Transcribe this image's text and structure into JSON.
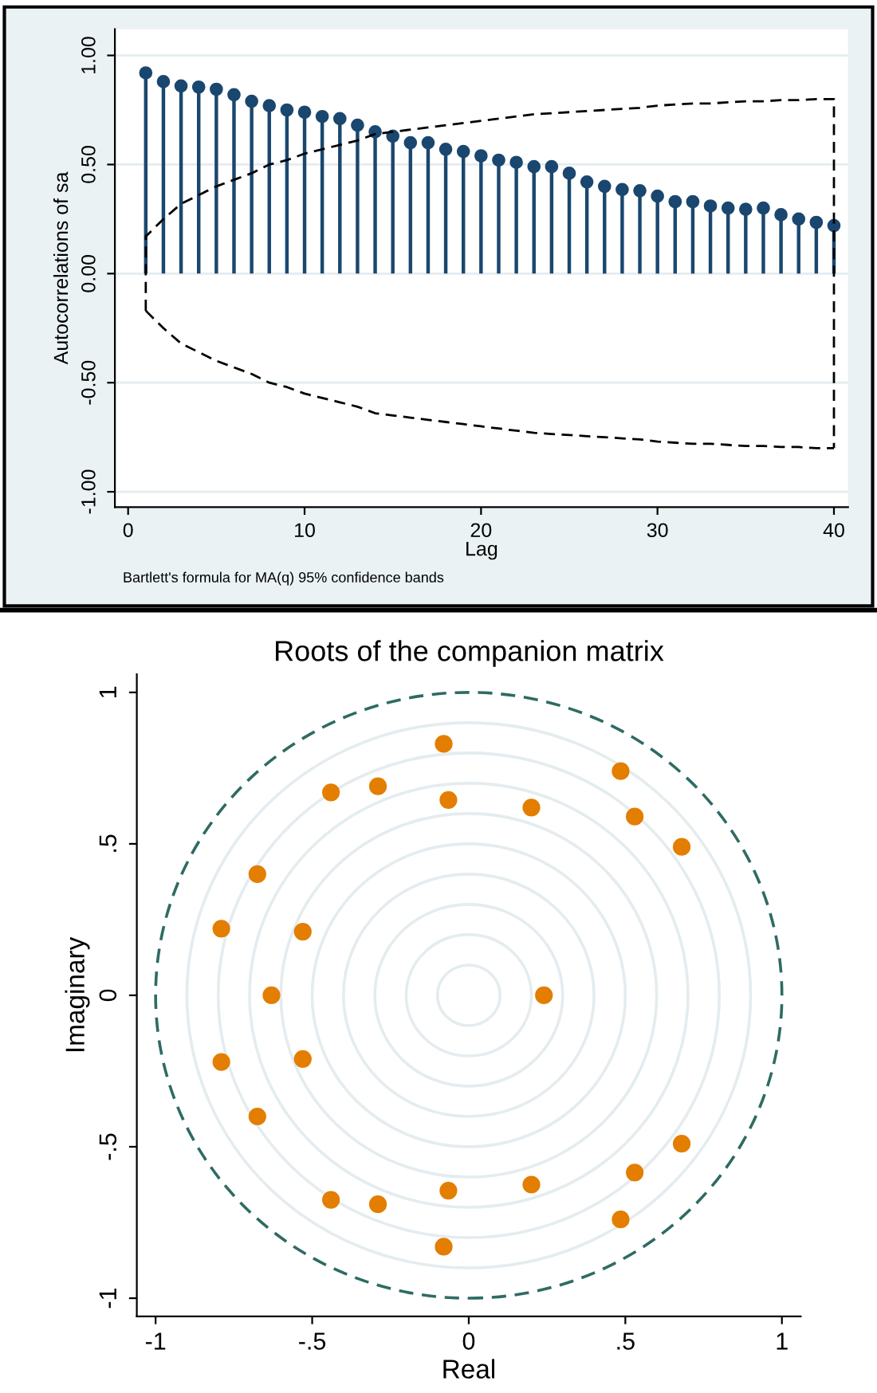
{
  "chart_data": [
    {
      "type": "lollipop",
      "ylabel": "Autocorrelations of sa",
      "xlabel": "Lag",
      "annotations": [
        "Bartlett's formula for MA(q) 95% confidence bands"
      ],
      "x": [
        1,
        2,
        3,
        4,
        5,
        6,
        7,
        8,
        9,
        10,
        11,
        12,
        13,
        14,
        15,
        16,
        17,
        18,
        19,
        20,
        21,
        22,
        23,
        24,
        25,
        26,
        27,
        28,
        29,
        30,
        31,
        32,
        33,
        34,
        35,
        36,
        37,
        38,
        39,
        40
      ],
      "series": [
        {
          "color": "#1a476f",
          "values": [
            0.92,
            0.88,
            0.86,
            0.855,
            0.845,
            0.82,
            0.79,
            0.77,
            0.75,
            0.74,
            0.72,
            0.71,
            0.68,
            0.65,
            0.63,
            0.6,
            0.6,
            0.57,
            0.56,
            0.54,
            0.52,
            0.51,
            0.49,
            0.49,
            0.46,
            0.42,
            0.4,
            0.385,
            0.38,
            0.355,
            0.33,
            0.33,
            0.31,
            0.3,
            0.295,
            0.3,
            0.27,
            0.25,
            0.235,
            0.22
          ]
        },
        {
          "type": "line",
          "color": "#000000",
          "line_style": "dashed",
          "marker": "none",
          "x": [
            1,
            1,
            2,
            3,
            4,
            5,
            6,
            7,
            8,
            9,
            10,
            11,
            12,
            13,
            14,
            15,
            16,
            17,
            18,
            19,
            20,
            21,
            22,
            23,
            24,
            25,
            26,
            27,
            28,
            29,
            30,
            31,
            32,
            33,
            34,
            35,
            36,
            37,
            38,
            39,
            40,
            40
          ],
          "values": [
            -0.17,
            0.17,
            0.25,
            0.32,
            0.36,
            0.4,
            0.43,
            0.46,
            0.5,
            0.52,
            0.55,
            0.57,
            0.59,
            0.61,
            0.64,
            0.65,
            0.66,
            0.67,
            0.68,
            0.69,
            0.7,
            0.71,
            0.72,
            0.73,
            0.735,
            0.74,
            0.745,
            0.75,
            0.755,
            0.76,
            0.77,
            0.775,
            0.78,
            0.78,
            0.785,
            0.79,
            0.79,
            0.795,
            0.795,
            0.8,
            0.8,
            -0.8
          ]
        },
        {
          "type": "line",
          "color": "#000000",
          "line_style": "dashed",
          "marker": "none",
          "values": [
            -0.17,
            -0.25,
            -0.32,
            -0.36,
            -0.4,
            -0.43,
            -0.46,
            -0.5,
            -0.52,
            -0.55,
            -0.57,
            -0.59,
            -0.61,
            -0.64,
            -0.65,
            -0.66,
            -0.67,
            -0.68,
            -0.69,
            -0.7,
            -0.71,
            -0.72,
            -0.73,
            -0.735,
            -0.74,
            -0.745,
            -0.75,
            -0.755,
            -0.76,
            -0.77,
            -0.775,
            -0.78,
            -0.78,
            -0.785,
            -0.79,
            -0.79,
            -0.795,
            -0.795,
            -0.8,
            -0.8
          ]
        }
      ],
      "xlim": [
        -0.75,
        40.8
      ],
      "ylim": [
        -1.07,
        1.12
      ],
      "xticks": [
        0,
        10,
        20,
        30,
        40
      ],
      "yticks": [
        {
          "value": -1,
          "label": "-1.00"
        },
        {
          "value": -0.5,
          "label": "-0.50"
        },
        {
          "value": 0,
          "label": "0.00"
        },
        {
          "value": 0.5,
          "label": "0.50"
        },
        {
          "value": 1,
          "label": "1.00"
        }
      ],
      "grid": "y",
      "marker": "circle"
    },
    {
      "type": "scatter",
      "title": "Roots of the companion matrix",
      "xlabel": "Real",
      "ylabel": "Imaginary",
      "x": [
        -0.08,
        0.485,
        -0.44,
        -0.29,
        -0.065,
        0.2,
        0.53,
        0.68,
        -0.675,
        -0.79,
        -0.53,
        -0.63,
        0.24,
        -0.79,
        -0.53,
        -0.675,
        0.68,
        0.53,
        -0.44,
        -0.29,
        -0.065,
        0.2,
        0.485,
        -0.08
      ],
      "series": [
        {
          "color": "#e37e00",
          "values": [
            0.83,
            0.74,
            0.67,
            0.69,
            0.645,
            0.62,
            0.59,
            0.49,
            0.4,
            0.22,
            0.21,
            0,
            0,
            -0.22,
            -0.21,
            -0.4,
            -0.49,
            -0.585,
            -0.675,
            -0.69,
            -0.645,
            -0.625,
            -0.74,
            -0.83
          ]
        }
      ],
      "xlim": [
        -1.06,
        1.06
      ],
      "ylim": [
        -1.06,
        1.06
      ],
      "xticks": [
        {
          "value": -1,
          "label": "-1"
        },
        {
          "value": -0.5,
          "label": "-.5"
        },
        0,
        {
          "value": 0.5,
          "label": ".5"
        },
        1
      ],
      "yticks": [
        {
          "value": -1,
          "label": "-1"
        },
        {
          "value": -0.5,
          "label": "-.5"
        },
        0,
        {
          "value": 0.5,
          "label": ".5"
        },
        1
      ],
      "marker": "circle"
    }
  ]
}
